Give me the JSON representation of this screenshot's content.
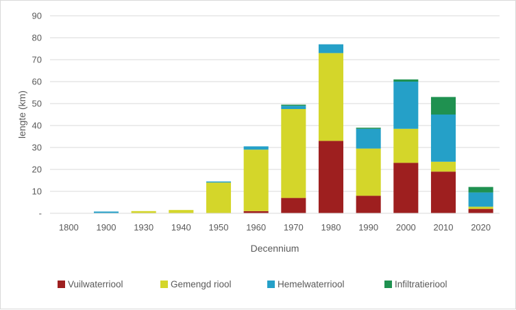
{
  "chart_data": {
    "type": "bar",
    "stacked": true,
    "title": "",
    "xlabel": "Decennium",
    "ylabel": "lengte (km)",
    "ylim": [
      0,
      90
    ],
    "yticks": [
      0,
      10,
      20,
      30,
      40,
      50,
      60,
      70,
      80,
      90
    ],
    "ytick_labels": [
      "-",
      "10",
      "20",
      "30",
      "40",
      "50",
      "60",
      "70",
      "80",
      "90"
    ],
    "grid": true,
    "legend_position": "bottom",
    "categories": [
      "1800",
      "1900",
      "1930",
      "1940",
      "1950",
      "1960",
      "1970",
      "1980",
      "1990",
      "2000",
      "2010",
      "2020"
    ],
    "series": [
      {
        "name": "Vuilwaterriool",
        "color": "#9e1f1f",
        "values": [
          0,
          0,
          0,
          0,
          0,
          1,
          7,
          33,
          8,
          23,
          19,
          2
        ]
      },
      {
        "name": "Gemengd riool",
        "color": "#d4d62a",
        "values": [
          0,
          0,
          1,
          1.5,
          14,
          28,
          40.5,
          40,
          21.5,
          15.5,
          4.5,
          1
        ]
      },
      {
        "name": "Hemelwaterriool",
        "color": "#25a0c8",
        "values": [
          0,
          0.8,
          0,
          0,
          0.5,
          1.5,
          1.5,
          4,
          9,
          21.5,
          21.5,
          6.5
        ]
      },
      {
        "name": "Infiltratieriool",
        "color": "#1f9150",
        "values": [
          0,
          0,
          0,
          0,
          0,
          0,
          0.5,
          0,
          0.5,
          1,
          8,
          2.5
        ]
      }
    ]
  }
}
